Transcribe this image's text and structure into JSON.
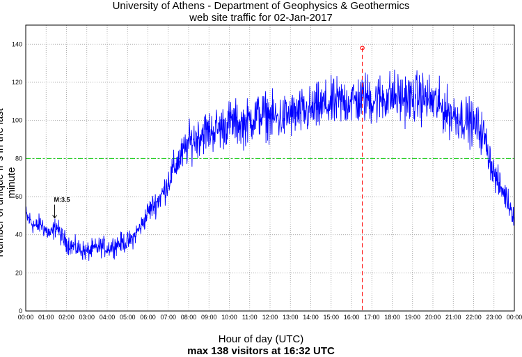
{
  "chart_data": {
    "type": "line",
    "title": "University of Athens - Department of Geophysics & Geothermics",
    "subtitle": "web site traffic for 02-Jan-2017",
    "xlabel": "Hour of day (UTC)",
    "xlabel2": "max 138 visitors at 16:32 UTC",
    "ylabel": "Number of unique IPs in the last minute",
    "x_ticks": [
      "00:00",
      "01:00",
      "02:00",
      "03:00",
      "04:00",
      "05:00",
      "06:00",
      "07:00",
      "08:00",
      "09:00",
      "10:00",
      "11:00",
      "12:00",
      "13:00",
      "14:00",
      "15:00",
      "16:00",
      "17:00",
      "18:00",
      "19:00",
      "20:00",
      "21:00",
      "22:00",
      "23:00",
      "00:00"
    ],
    "y_ticks": [
      "0",
      "20",
      "40",
      "60",
      "80",
      "100",
      "120",
      "140"
    ],
    "xlim": [
      0,
      24
    ],
    "ylim": [
      0,
      150
    ],
    "grid": true,
    "reference_line": 80,
    "max_point": {
      "x": 16.533,
      "y": 138
    },
    "annotation": {
      "text": "M:3.5",
      "x": 1.42,
      "y": 47
    },
    "series": [
      {
        "color": "#0000ff",
        "x": [
          0,
          0.25,
          0.5,
          0.75,
          1,
          1.25,
          1.5,
          1.75,
          2,
          2.25,
          2.5,
          2.75,
          3,
          3.25,
          3.5,
          3.75,
          4,
          4.25,
          4.5,
          4.75,
          5,
          5.25,
          5.5,
          5.75,
          6,
          6.25,
          6.5,
          6.75,
          7,
          7.25,
          7.5,
          7.75,
          8,
          8.25,
          8.5,
          8.75,
          9,
          9.25,
          9.5,
          9.75,
          10,
          10.25,
          10.5,
          10.75,
          11,
          11.25,
          11.5,
          11.75,
          12,
          12.25,
          12.5,
          12.75,
          13,
          13.25,
          13.5,
          13.75,
          14,
          14.25,
          14.5,
          14.75,
          15,
          15.25,
          15.5,
          15.75,
          16,
          16.25,
          16.5,
          16.75,
          17,
          17.25,
          17.5,
          17.75,
          18,
          18.25,
          18.5,
          18.75,
          19,
          19.25,
          19.5,
          19.75,
          20,
          20.25,
          20.5,
          20.75,
          21,
          21.25,
          21.5,
          21.75,
          22,
          22.25,
          22.5,
          22.75,
          23,
          23.25,
          23.5,
          23.75,
          24
        ],
        "y": [
          50,
          47,
          44,
          46,
          42,
          40,
          45,
          39,
          36,
          34,
          33,
          32,
          31,
          32,
          33,
          34,
          33,
          34,
          35,
          36,
          36,
          38,
          42,
          46,
          52,
          55,
          58,
          62,
          68,
          74,
          79,
          83,
          88,
          90,
          92,
          94,
          94,
          95,
          96,
          97,
          99,
          99,
          98,
          98,
          100,
          102,
          103,
          103,
          102,
          101,
          101,
          102,
          103,
          103,
          104,
          104,
          105,
          106,
          107,
          108,
          108,
          109,
          110,
          110,
          111,
          110,
          111,
          112,
          111,
          111,
          112,
          112,
          113,
          112,
          112,
          112,
          111,
          112,
          112,
          111,
          110,
          108,
          106,
          104,
          103,
          102,
          101,
          100,
          98,
          96,
          92,
          82,
          72,
          66,
          62,
          56,
          50
        ]
      }
    ]
  }
}
